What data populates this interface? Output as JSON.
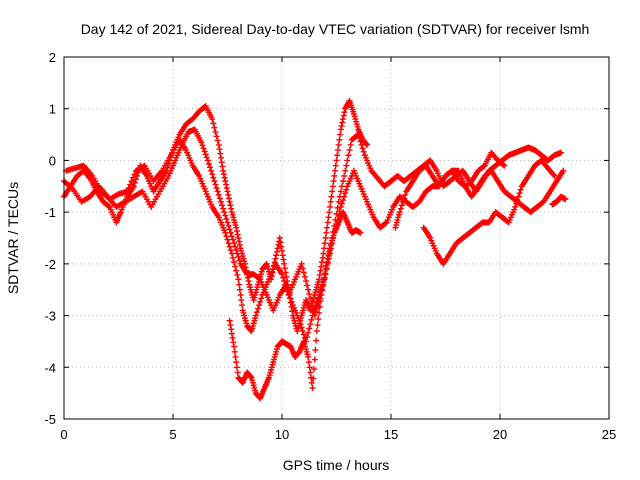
{
  "chart_data": {
    "type": "scatter",
    "title": "Day 142 of 2021, Sidereal Day-to-day VTEC variation (SDTVAR) for receiver lsmh",
    "xlabel": "GPS time / hours",
    "ylabel": "SDTVAR / TECUs",
    "xlim": [
      0,
      25
    ],
    "ylim": [
      -5,
      2
    ],
    "xticks": [
      0,
      5,
      10,
      15,
      20,
      25
    ],
    "yticks": [
      -5,
      -4,
      -3,
      -2,
      -1,
      0,
      1,
      2
    ],
    "grid": true,
    "marker": "+",
    "color": "#ff0000",
    "series": [
      {
        "values": [
          [
            0.0,
            -0.7
          ],
          [
            0.3,
            -0.5
          ],
          [
            0.6,
            -0.3
          ],
          [
            0.9,
            -0.2
          ],
          [
            1.2,
            -0.35
          ],
          [
            1.5,
            -0.6
          ],
          [
            1.8,
            -0.8
          ],
          [
            2.1,
            -0.9
          ],
          [
            2.4,
            -1.2
          ],
          [
            2.6,
            -1.0
          ],
          [
            2.9,
            -0.7
          ],
          [
            3.2,
            -0.5
          ],
          [
            3.5,
            -0.1
          ],
          [
            3.8,
            -0.3
          ],
          [
            4.1,
            -0.6
          ],
          [
            4.4,
            -0.4
          ],
          [
            4.7,
            -0.2
          ],
          [
            5.0,
            0.2
          ],
          [
            5.3,
            0.5
          ],
          [
            5.6,
            0.7
          ],
          [
            5.9,
            0.8
          ],
          [
            6.2,
            0.95
          ],
          [
            6.5,
            1.05
          ],
          [
            6.8,
            0.8
          ],
          [
            7.1,
            0.3
          ],
          [
            7.3,
            -0.2
          ],
          [
            7.5,
            -0.6
          ],
          [
            7.7,
            -1.0
          ],
          [
            7.9,
            -1.3
          ],
          [
            8.1,
            -1.7
          ],
          [
            8.3,
            -2.0
          ],
          [
            8.5,
            -2.4
          ],
          [
            8.7,
            -2.7
          ],
          [
            8.9,
            -2.4
          ],
          [
            9.1,
            -2.1
          ],
          [
            9.3,
            -2.0
          ],
          [
            9.5,
            -2.3
          ],
          [
            9.7,
            -1.9
          ],
          [
            9.9,
            -1.5
          ],
          [
            10.1,
            -2.0
          ],
          [
            10.3,
            -2.5
          ],
          [
            10.5,
            -3.0
          ],
          [
            10.7,
            -3.3
          ],
          [
            10.9,
            -3.0
          ],
          [
            11.1,
            -2.7
          ],
          [
            11.3,
            -2.9
          ],
          [
            11.5,
            -2.6
          ],
          [
            11.7,
            -2.3
          ],
          [
            11.9,
            -1.8
          ],
          [
            12.1,
            -1.2
          ],
          [
            12.3,
            -0.6
          ],
          [
            12.5,
            0.0
          ],
          [
            12.7,
            0.6
          ],
          [
            12.9,
            1.0
          ],
          [
            13.1,
            1.15
          ],
          [
            13.3,
            0.9
          ],
          [
            13.5,
            0.6
          ],
          [
            13.7,
            0.4
          ],
          [
            13.9,
            0.3
          ]
        ]
      },
      {
        "values": [
          [
            0.0,
            -0.4
          ],
          [
            0.4,
            -0.55
          ],
          [
            0.8,
            -0.8
          ],
          [
            1.2,
            -0.7
          ],
          [
            1.6,
            -0.5
          ],
          [
            2.0,
            -0.7
          ],
          [
            2.4,
            -0.9
          ],
          [
            2.8,
            -0.8
          ],
          [
            3.2,
            -0.7
          ],
          [
            3.6,
            -0.6
          ],
          [
            4.0,
            -0.9
          ],
          [
            4.4,
            -0.6
          ],
          [
            4.8,
            -0.3
          ],
          [
            5.1,
            0.0
          ],
          [
            5.4,
            0.3
          ],
          [
            5.7,
            0.55
          ],
          [
            6.0,
            0.6
          ],
          [
            6.3,
            0.35
          ],
          [
            6.6,
            0.0
          ],
          [
            6.9,
            -0.4
          ],
          [
            7.2,
            -0.8
          ],
          [
            7.5,
            -1.2
          ],
          [
            7.8,
            -1.6
          ],
          [
            8.1,
            -2.0
          ],
          [
            8.4,
            -2.2
          ],
          [
            8.7,
            -2.2
          ],
          [
            9.0,
            -2.3
          ],
          [
            9.3,
            -2.6
          ],
          [
            9.6,
            -2.9
          ],
          [
            9.9,
            -2.6
          ],
          [
            10.2,
            -2.4
          ],
          [
            10.5,
            -2.8
          ],
          [
            10.8,
            -3.1
          ],
          [
            11.1,
            -3.5
          ],
          [
            11.4,
            -3.0
          ],
          [
            11.7,
            -2.6
          ],
          [
            12.0,
            -2.2
          ],
          [
            12.3,
            -1.5
          ],
          [
            12.6,
            -0.8
          ],
          [
            12.9,
            -0.2
          ],
          [
            13.2,
            0.4
          ],
          [
            13.5,
            0.5
          ],
          [
            13.8,
            0.1
          ],
          [
            14.1,
            -0.2
          ],
          [
            14.4,
            -0.35
          ],
          [
            14.7,
            -0.5
          ],
          [
            15.0,
            -0.4
          ],
          [
            15.3,
            -0.3
          ],
          [
            15.6,
            -0.4
          ],
          [
            15.9,
            -0.3
          ],
          [
            16.2,
            -0.2
          ],
          [
            16.5,
            -0.1
          ],
          [
            16.8,
            0.0
          ],
          [
            17.1,
            -0.2
          ],
          [
            17.4,
            -0.5
          ],
          [
            17.7,
            -0.4
          ],
          [
            18.0,
            -0.3
          ],
          [
            18.3,
            -0.2
          ],
          [
            18.6,
            -0.4
          ],
          [
            18.9,
            -0.6
          ],
          [
            19.2,
            -0.4
          ],
          [
            19.5,
            -0.2
          ],
          [
            19.8,
            -0.1
          ],
          [
            20.1,
            0.0
          ],
          [
            20.4,
            0.1
          ],
          [
            20.7,
            0.15
          ],
          [
            21.0,
            0.2
          ],
          [
            21.3,
            0.25
          ],
          [
            21.6,
            0.2
          ],
          [
            21.9,
            0.1
          ],
          [
            22.2,
            0.0
          ],
          [
            22.5,
            0.1
          ],
          [
            22.8,
            0.15
          ]
        ]
      },
      {
        "values": [
          [
            0.1,
            -0.2
          ],
          [
            0.5,
            -0.15
          ],
          [
            0.9,
            -0.1
          ],
          [
            1.3,
            -0.3
          ],
          [
            1.7,
            -0.6
          ],
          [
            2.1,
            -0.75
          ],
          [
            2.5,
            -0.65
          ],
          [
            2.9,
            -0.6
          ],
          [
            3.3,
            -0.2
          ],
          [
            3.7,
            -0.1
          ],
          [
            4.1,
            -0.4
          ],
          [
            4.5,
            -0.2
          ],
          [
            4.9,
            0.1
          ],
          [
            5.3,
            0.4
          ],
          [
            5.6,
            0.2
          ],
          [
            5.9,
            -0.1
          ],
          [
            6.2,
            -0.3
          ],
          [
            6.5,
            -0.6
          ],
          [
            6.8,
            -0.9
          ],
          [
            7.1,
            -1.1
          ],
          [
            7.4,
            -1.4
          ],
          [
            7.7,
            -1.8
          ],
          [
            8.0,
            -2.3
          ],
          [
            8.2,
            -2.9
          ],
          [
            8.4,
            -3.2
          ],
          [
            8.6,
            -3.3
          ],
          [
            8.8,
            -3.0
          ],
          [
            9.1,
            -2.6
          ],
          [
            9.4,
            -2.3
          ],
          [
            9.7,
            -2.0
          ],
          [
            10.0,
            -2.2
          ],
          [
            10.3,
            -2.6
          ],
          [
            10.6,
            -2.3
          ],
          [
            10.9,
            -2.0
          ],
          [
            11.2,
            -2.5
          ],
          [
            11.5,
            -3.0
          ],
          [
            11.8,
            -2.6
          ],
          [
            12.1,
            -2.0
          ],
          [
            12.4,
            -1.4
          ],
          [
            12.7,
            -0.9
          ],
          [
            13.0,
            -0.5
          ],
          [
            13.3,
            -0.2
          ],
          [
            13.6,
            -0.5
          ],
          [
            13.9,
            -0.8
          ],
          [
            14.2,
            -1.1
          ],
          [
            14.5,
            -1.3
          ],
          [
            14.8,
            -1.2
          ],
          [
            15.1,
            -0.9
          ],
          [
            15.4,
            -0.7
          ],
          [
            15.7,
            -0.8
          ],
          [
            16.0,
            -0.9
          ],
          [
            16.3,
            -0.8
          ],
          [
            16.6,
            -0.6
          ],
          [
            16.9,
            -0.5
          ],
          [
            17.2,
            -0.5
          ],
          [
            17.5,
            -0.3
          ],
          [
            17.8,
            -0.2
          ],
          [
            18.1,
            -0.2
          ],
          [
            18.4,
            -0.5
          ],
          [
            18.7,
            -0.7
          ],
          [
            19.0,
            -0.5
          ],
          [
            19.3,
            -0.3
          ],
          [
            19.6,
            -0.2
          ],
          [
            19.9,
            -0.4
          ],
          [
            20.2,
            -0.6
          ],
          [
            20.5,
            -0.7
          ],
          [
            20.8,
            -0.8
          ],
          [
            21.1,
            -0.9
          ],
          [
            21.4,
            -1.0
          ],
          [
            21.7,
            -0.9
          ],
          [
            22.0,
            -0.8
          ],
          [
            22.3,
            -0.6
          ],
          [
            22.6,
            -0.4
          ],
          [
            22.9,
            -0.2
          ]
        ]
      },
      {
        "values": [
          [
            7.6,
            -3.1
          ],
          [
            7.8,
            -3.6
          ],
          [
            8.0,
            -4.2
          ],
          [
            8.2,
            -4.3
          ],
          [
            8.4,
            -4.1
          ],
          [
            8.6,
            -4.2
          ],
          [
            8.8,
            -4.5
          ],
          [
            9.0,
            -4.6
          ],
          [
            9.2,
            -4.4
          ],
          [
            9.4,
            -4.2
          ],
          [
            9.6,
            -3.9
          ],
          [
            9.8,
            -3.6
          ],
          [
            10.0,
            -3.5
          ],
          [
            10.2,
            -3.55
          ],
          [
            10.4,
            -3.6
          ],
          [
            10.6,
            -3.8
          ],
          [
            10.8,
            -3.7
          ],
          [
            11.0,
            -3.5
          ],
          [
            11.2,
            -3.8
          ],
          [
            11.4,
            -4.4
          ],
          [
            11.6,
            -3.3
          ],
          [
            11.8,
            -2.6
          ],
          [
            12.0,
            -2.1
          ],
          [
            12.2,
            -1.7
          ],
          [
            12.4,
            -1.4
          ],
          [
            12.6,
            -1.2
          ],
          [
            12.8,
            -1.0
          ],
          [
            13.0,
            -1.2
          ],
          [
            13.2,
            -1.4
          ],
          [
            13.4,
            -1.35
          ],
          [
            13.6,
            -1.4
          ]
        ]
      },
      {
        "values": [
          [
            15.2,
            -1.3
          ],
          [
            15.4,
            -1.0
          ],
          [
            15.7,
            -0.6
          ],
          [
            16.0,
            -0.4
          ],
          [
            16.3,
            -0.2
          ],
          [
            16.6,
            -0.1
          ],
          [
            16.9,
            -0.3
          ],
          [
            17.2,
            -0.5
          ],
          [
            17.5,
            -0.3
          ],
          [
            17.8,
            -0.2
          ],
          [
            18.1,
            -0.4
          ],
          [
            18.4,
            -0.5
          ],
          [
            18.7,
            -0.4
          ],
          [
            19.0,
            -0.2
          ],
          [
            19.3,
            -0.1
          ],
          [
            19.6,
            0.15
          ],
          [
            19.9,
            0.0
          ],
          [
            20.2,
            -0.1
          ]
        ]
      },
      {
        "values": [
          [
            16.5,
            -1.3
          ],
          [
            16.8,
            -1.5
          ],
          [
            17.1,
            -1.8
          ],
          [
            17.4,
            -2.0
          ],
          [
            17.7,
            -1.8
          ],
          [
            18.0,
            -1.6
          ],
          [
            18.3,
            -1.5
          ],
          [
            18.6,
            -1.4
          ],
          [
            18.9,
            -1.3
          ],
          [
            19.2,
            -1.2
          ],
          [
            19.5,
            -1.2
          ],
          [
            19.8,
            -1.0
          ],
          [
            20.1,
            -1.1
          ],
          [
            20.4,
            -1.2
          ],
          [
            20.7,
            -0.9
          ],
          [
            21.0,
            -0.5
          ],
          [
            21.3,
            -0.3
          ],
          [
            21.6,
            -0.1
          ],
          [
            21.9,
            0.0
          ],
          [
            22.2,
            -0.15
          ],
          [
            22.5,
            -0.3
          ]
        ]
      },
      {
        "values": [
          [
            22.4,
            -0.85
          ],
          [
            22.6,
            -0.8
          ],
          [
            22.8,
            -0.7
          ],
          [
            23.0,
            -0.75
          ]
        ]
      }
    ]
  }
}
